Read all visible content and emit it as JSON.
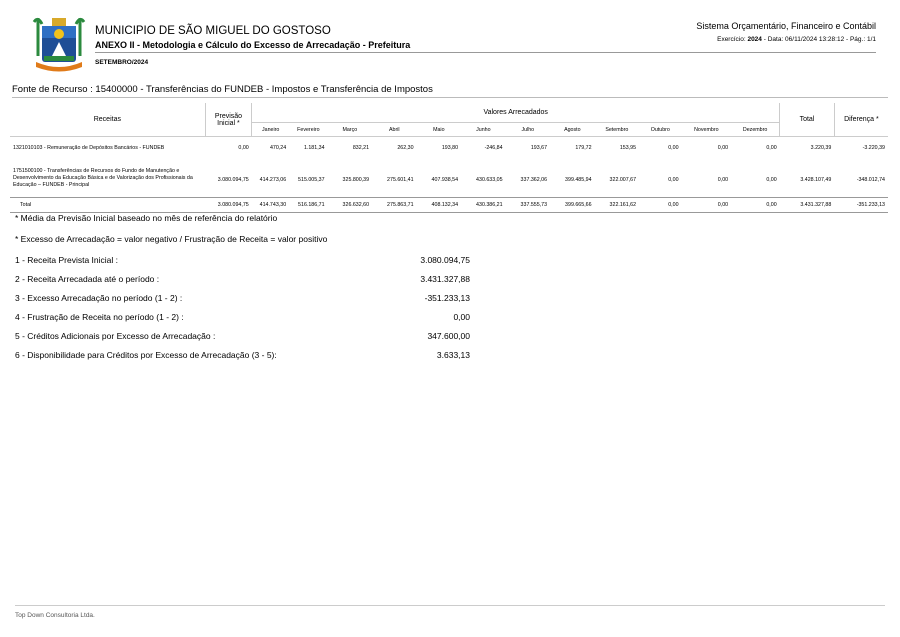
{
  "header": {
    "municipality": "MUNICIPIO DE SÃO MIGUEL DO GOSTOSO",
    "annex": "ANEXO II - Metodologia e Cálculo do Excesso de Arrecadação - Prefeitura",
    "month": "SETEMBRO/2024",
    "system": "Sistema Orçamentário, Financeiro e Contábil",
    "exercise_label": "Exercício: ",
    "exercise_year": "2024",
    "info_rest": " - Data: 06/11/2024 13:28:12 -  Pág.: 1/1"
  },
  "fonte": "Fonte de Recurso : 15400000 - Transferências do FUNDEB - Impostos e Transferência de Impostos",
  "table": {
    "col_receitas": "Receitas",
    "col_previsao": "Previsão Inicial *",
    "col_valores": "Valores Arrecadados",
    "col_total": "Total",
    "col_diferenca": "Diferença *",
    "months": [
      "Janeiro",
      "Fevereiro",
      "Março",
      "Abril",
      "Maio",
      "Junho",
      "Julho",
      "Agosto",
      "Setembro",
      "Outubro",
      "Novembro",
      "Dezembro"
    ],
    "rows": [
      {
        "receita": "1321010103 - Remuneração de Depósitos Bancários - FUNDEB",
        "previsao": "0,00",
        "values": [
          "470,24",
          "1.181,34",
          "832,21",
          "262,30",
          "193,80",
          "-246,84",
          "193,67",
          "179,72",
          "153,95",
          "0,00",
          "0,00",
          "0,00"
        ],
        "total": "3.220,39",
        "diferenca": "-3.220,39"
      },
      {
        "receita": "1751500100 - Transferências de Recursos do Fundo de Manutenção e Desenvolvimento da Educação Básica e de Valorização dos Profissionais da Educação – FUNDEB - Principal",
        "previsao": "3.080.094,75",
        "values": [
          "414.273,06",
          "515.005,37",
          "325.800,39",
          "275.601,41",
          "407.938,54",
          "430.633,05",
          "337.362,06",
          "399.485,94",
          "322.007,67",
          "0,00",
          "0,00",
          "0,00"
        ],
        "total": "3.428.107,49",
        "diferenca": "-348.012,74"
      },
      {
        "receita": "Total",
        "previsao": "3.080.094,75",
        "values": [
          "414.743,30",
          "516.186,71",
          "326.632,60",
          "275.863,71",
          "408.132,34",
          "430.386,21",
          "337.555,73",
          "399.665,66",
          "322.161,62",
          "0,00",
          "0,00",
          "0,00"
        ],
        "total": "3.431.327,88",
        "diferenca": "-351.233,13"
      }
    ]
  },
  "notes": [
    "* Média da Previsão Inicial baseado no mês de referência do relatório",
    "* Excesso de Arrecadação = valor negativo / Frustração de Receita = valor positivo"
  ],
  "summary": [
    {
      "label": "1 - Receita Prevista Inicial :",
      "value": "3.080.094,75"
    },
    {
      "label": "2 - Receita Arrecadada até o período :",
      "value": "3.431.327,88"
    },
    {
      "label": "3 - Excesso Arrecadação no período (1 - 2) :",
      "value": "-351.233,13"
    },
    {
      "label": "4 - Frustração de Receita no período (1 - 2) :",
      "value": "0,00"
    },
    {
      "label": "5 - Créditos Adicionais por Excesso de Arrecadação :",
      "value": "347.600,00"
    },
    {
      "label": "6 - Disponibilidade para Créditos por Excesso de Arrecadação  (3 - 5):",
      "value": "3.633,13"
    }
  ],
  "footer": "Top Down Consultoria Ltda."
}
